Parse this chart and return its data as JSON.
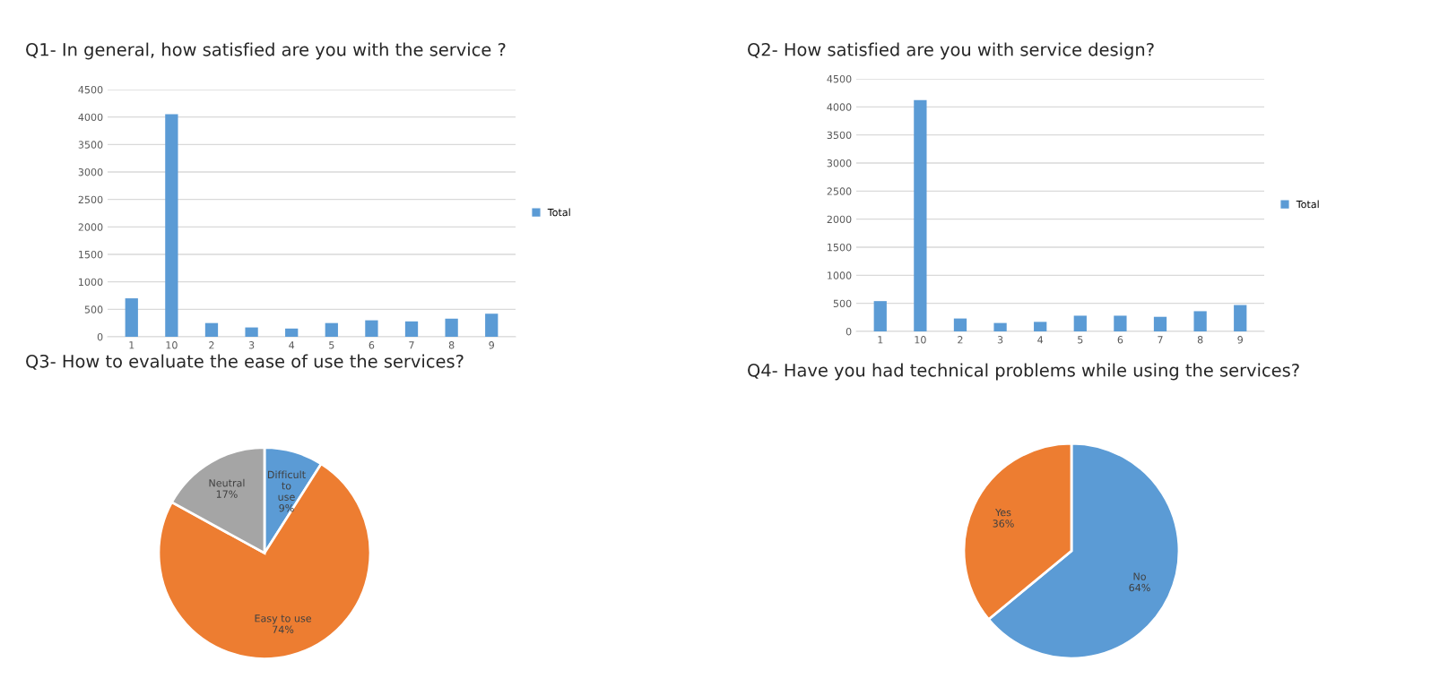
{
  "chart_data": [
    {
      "type": "bar",
      "title": "Q1- In general, how satisfied are you with the service ?",
      "categories": [
        "1",
        "10",
        "2",
        "3",
        "4",
        "5",
        "6",
        "7",
        "8",
        "9"
      ],
      "series": [
        {
          "name": "Total",
          "color": "#5b9bd5",
          "values": [
            700,
            4050,
            250,
            170,
            150,
            250,
            300,
            280,
            330,
            420
          ]
        }
      ],
      "ylim": [
        0,
        4500
      ],
      "yticks": [
        0,
        500,
        1000,
        1500,
        2000,
        2500,
        3000,
        3500,
        4000,
        4500
      ],
      "grid": "y",
      "legend": "right"
    },
    {
      "type": "bar",
      "title": "Q2- How satisfied are you with service design?",
      "categories": [
        "1",
        "10",
        "2",
        "3",
        "4",
        "5",
        "6",
        "7",
        "8",
        "9"
      ],
      "series": [
        {
          "name": "Total",
          "color": "#5b9bd5",
          "values": [
            540,
            4120,
            230,
            150,
            170,
            280,
            280,
            260,
            360,
            470
          ]
        }
      ],
      "ylim": [
        0,
        4500
      ],
      "yticks": [
        0,
        500,
        1000,
        1500,
        2000,
        2500,
        3000,
        3500,
        4000,
        4500
      ],
      "grid": "y",
      "legend": "right"
    },
    {
      "type": "pie",
      "title": "Q3- How to evaluate the ease of use the services?",
      "categories": [
        "Difficult to use",
        "Easy to use",
        "Neutral"
      ],
      "values": [
        9,
        74,
        17
      ],
      "colors": [
        "#5b9bd5",
        "#ed7d31",
        "#a5a5a5"
      ],
      "value_labels": [
        "9%",
        "74%",
        "17%"
      ]
    },
    {
      "type": "pie",
      "title": "Q4- Have you had technical problems while using the services?",
      "categories": [
        "No",
        "Yes"
      ],
      "values": [
        64,
        36
      ],
      "colors": [
        "#5b9bd5",
        "#ed7d31"
      ],
      "value_labels": [
        "64%",
        "36%"
      ]
    }
  ]
}
